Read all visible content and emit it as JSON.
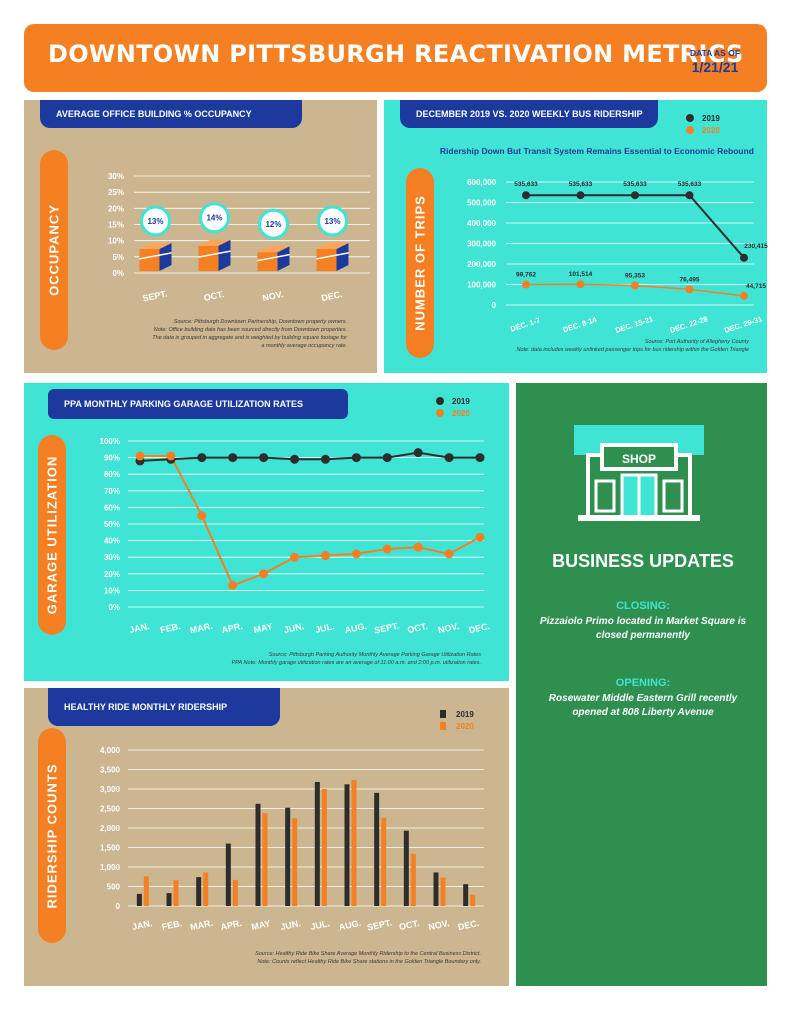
{
  "header": {
    "title": "DOWNTOWN PITTSBURGH REACTIVATION METRICS",
    "date_label": "DATA AS OF",
    "date": "1/21/21"
  },
  "office": {
    "title": "AVERAGE OFFICE BUILDING % OCCUPANCY",
    "ylabel": "OCCUPANCY",
    "source": [
      "Source: Pittsburgh Downtown Partnership, Downtown property owners.",
      "Note: Office building data has been sourced directly from Downtown properties.",
      "The data is grouped in aggregate and is weighted by building square footage for",
      "a monthly average occupancy rate."
    ]
  },
  "bus": {
    "title": "DECEMBER 2019 VS. 2020 WEEKLY BUS RIDERSHIP",
    "subtitle": "Ridership Down But Transit System Remains Essential to Economic Rebound",
    "ylabel": "NUMBER OF TRIPS",
    "legend": [
      "2019",
      "2020"
    ],
    "source": [
      "Source: Port Authority of Allegheny County",
      "Note: data includes weekly unlinked passenger trips for bus ridership within the Golden Triangle"
    ]
  },
  "parking": {
    "title": "PPA MONTHLY PARKING GARAGE UTILIZATION RATES",
    "ylabel": "GARAGE UTILIZATION",
    "legend": [
      "2019",
      "2020"
    ],
    "source": [
      "Source: Pittsburgh Parking Authority Monthly Average Parking Garage Utilization Rates",
      "PPA Note: Monthly garage utilization rates are an average of 11:00 a.m. and 2:00 p.m. utilization rates."
    ]
  },
  "healthy": {
    "title": "HEALTHY RIDE MONTHLY RIDERSHIP",
    "ylabel": "RIDERSHIP COUNTS",
    "legend": [
      "2019",
      "2020"
    ],
    "source": [
      "Source: Healthy Ride Bike Share Average Monthly Ridership to the Central Business District.",
      "Note: Counts reflect Healthy Ride Bike Share stations in the Golden Triangle Boundary only."
    ]
  },
  "business": {
    "shop_sign": "SHOP",
    "title": "BUSINESS UPDATES",
    "closing_head": "CLOSING:",
    "closing_text": "Pizzaiolo Primo located in Market Square is closed permanently",
    "opening_head": "OPENING:",
    "opening_text": "Rosewater Middle Eastern Grill recently opened at 808 Liberty Avenue"
  },
  "colors": {
    "orange": "#f58023",
    "blue": "#1c3a9e",
    "teal": "#3fe4d4",
    "tan": "#cbb68f",
    "green": "#2e8f4e",
    "dark": "#2d2d2d"
  },
  "chart_data": [
    {
      "type": "bar",
      "title": "AVERAGE OFFICE BUILDING % OCCUPANCY",
      "ylabel": "OCCUPANCY",
      "categories": [
        "SEPT.",
        "OCT.",
        "NOV.",
        "DEC."
      ],
      "values": [
        13,
        14,
        12,
        13
      ],
      "value_labels": [
        "13%",
        "14%",
        "12%",
        "13%"
      ],
      "yticks": [
        "0%",
        "5%",
        "10%",
        "15%",
        "20%",
        "25%",
        "30%"
      ],
      "ylim": [
        0,
        30
      ]
    },
    {
      "type": "line",
      "title": "DECEMBER 2019 VS. 2020 WEEKLY BUS RIDERSHIP",
      "ylabel": "NUMBER OF TRIPS",
      "categories": [
        "DEC. 1-7",
        "DEC. 8-14",
        "DEC. 15-21",
        "DEC. 22-28",
        "DEC. 29-31"
      ],
      "series": [
        {
          "name": "2019",
          "values": [
            535633,
            535633,
            535633,
            535633,
            230415
          ],
          "labels": [
            "535,633",
            "535,633",
            "535,633",
            "535,633",
            "230,415"
          ]
        },
        {
          "name": "2020",
          "values": [
            99762,
            101514,
            95353,
            76495,
            44715
          ],
          "labels": [
            "99,762",
            "101,514",
            "95,353",
            "76,495",
            "44,715"
          ]
        }
      ],
      "yticks": [
        "0",
        "100,000",
        "200,000",
        "300,000",
        "400,000",
        "500,000",
        "600,000"
      ],
      "ylim": [
        0,
        600000
      ]
    },
    {
      "type": "line",
      "title": "PPA MONTHLY PARKING GARAGE UTILIZATION RATES",
      "ylabel": "GARAGE UTILIZATION",
      "categories": [
        "JAN.",
        "FEB.",
        "MAR.",
        "APR.",
        "MAY",
        "JUN.",
        "JUL.",
        "AUG.",
        "SEPT.",
        "OCT.",
        "NOV.",
        "DEC."
      ],
      "series": [
        {
          "name": "2019",
          "values": [
            88,
            89,
            90,
            90,
            90,
            89,
            89,
            90,
            90,
            93,
            90,
            90
          ]
        },
        {
          "name": "2020",
          "values": [
            91,
            91,
            55,
            13,
            20,
            30,
            31,
            32,
            35,
            36,
            32,
            42
          ]
        }
      ],
      "yticks": [
        "0%",
        "10%",
        "20%",
        "30%",
        "40%",
        "50%",
        "60%",
        "70%",
        "80%",
        "90%",
        "100%"
      ],
      "ylim": [
        0,
        100
      ]
    },
    {
      "type": "bar",
      "title": "HEALTHY RIDE MONTHLY RIDERSHIP",
      "ylabel": "RIDERSHIP COUNTS",
      "categories": [
        "JAN.",
        "FEB.",
        "MAR.",
        "APR.",
        "MAY",
        "JUN.",
        "JUL.",
        "AUG.",
        "SEPT.",
        "OCT.",
        "NOV.",
        "DEC."
      ],
      "series": [
        {
          "name": "2019",
          "values": [
            310,
            330,
            740,
            1600,
            2620,
            2520,
            3180,
            3120,
            2900,
            1930,
            860,
            560
          ]
        },
        {
          "name": "2020",
          "values": [
            760,
            660,
            860,
            670,
            2380,
            2250,
            3000,
            3230,
            2260,
            1340,
            730,
            290
          ]
        }
      ],
      "yticks": [
        "0",
        "500",
        "1,000",
        "1,500",
        "2,000",
        "2,500",
        "3,000",
        "3,500",
        "4,000"
      ],
      "ylim": [
        0,
        4000
      ]
    }
  ]
}
